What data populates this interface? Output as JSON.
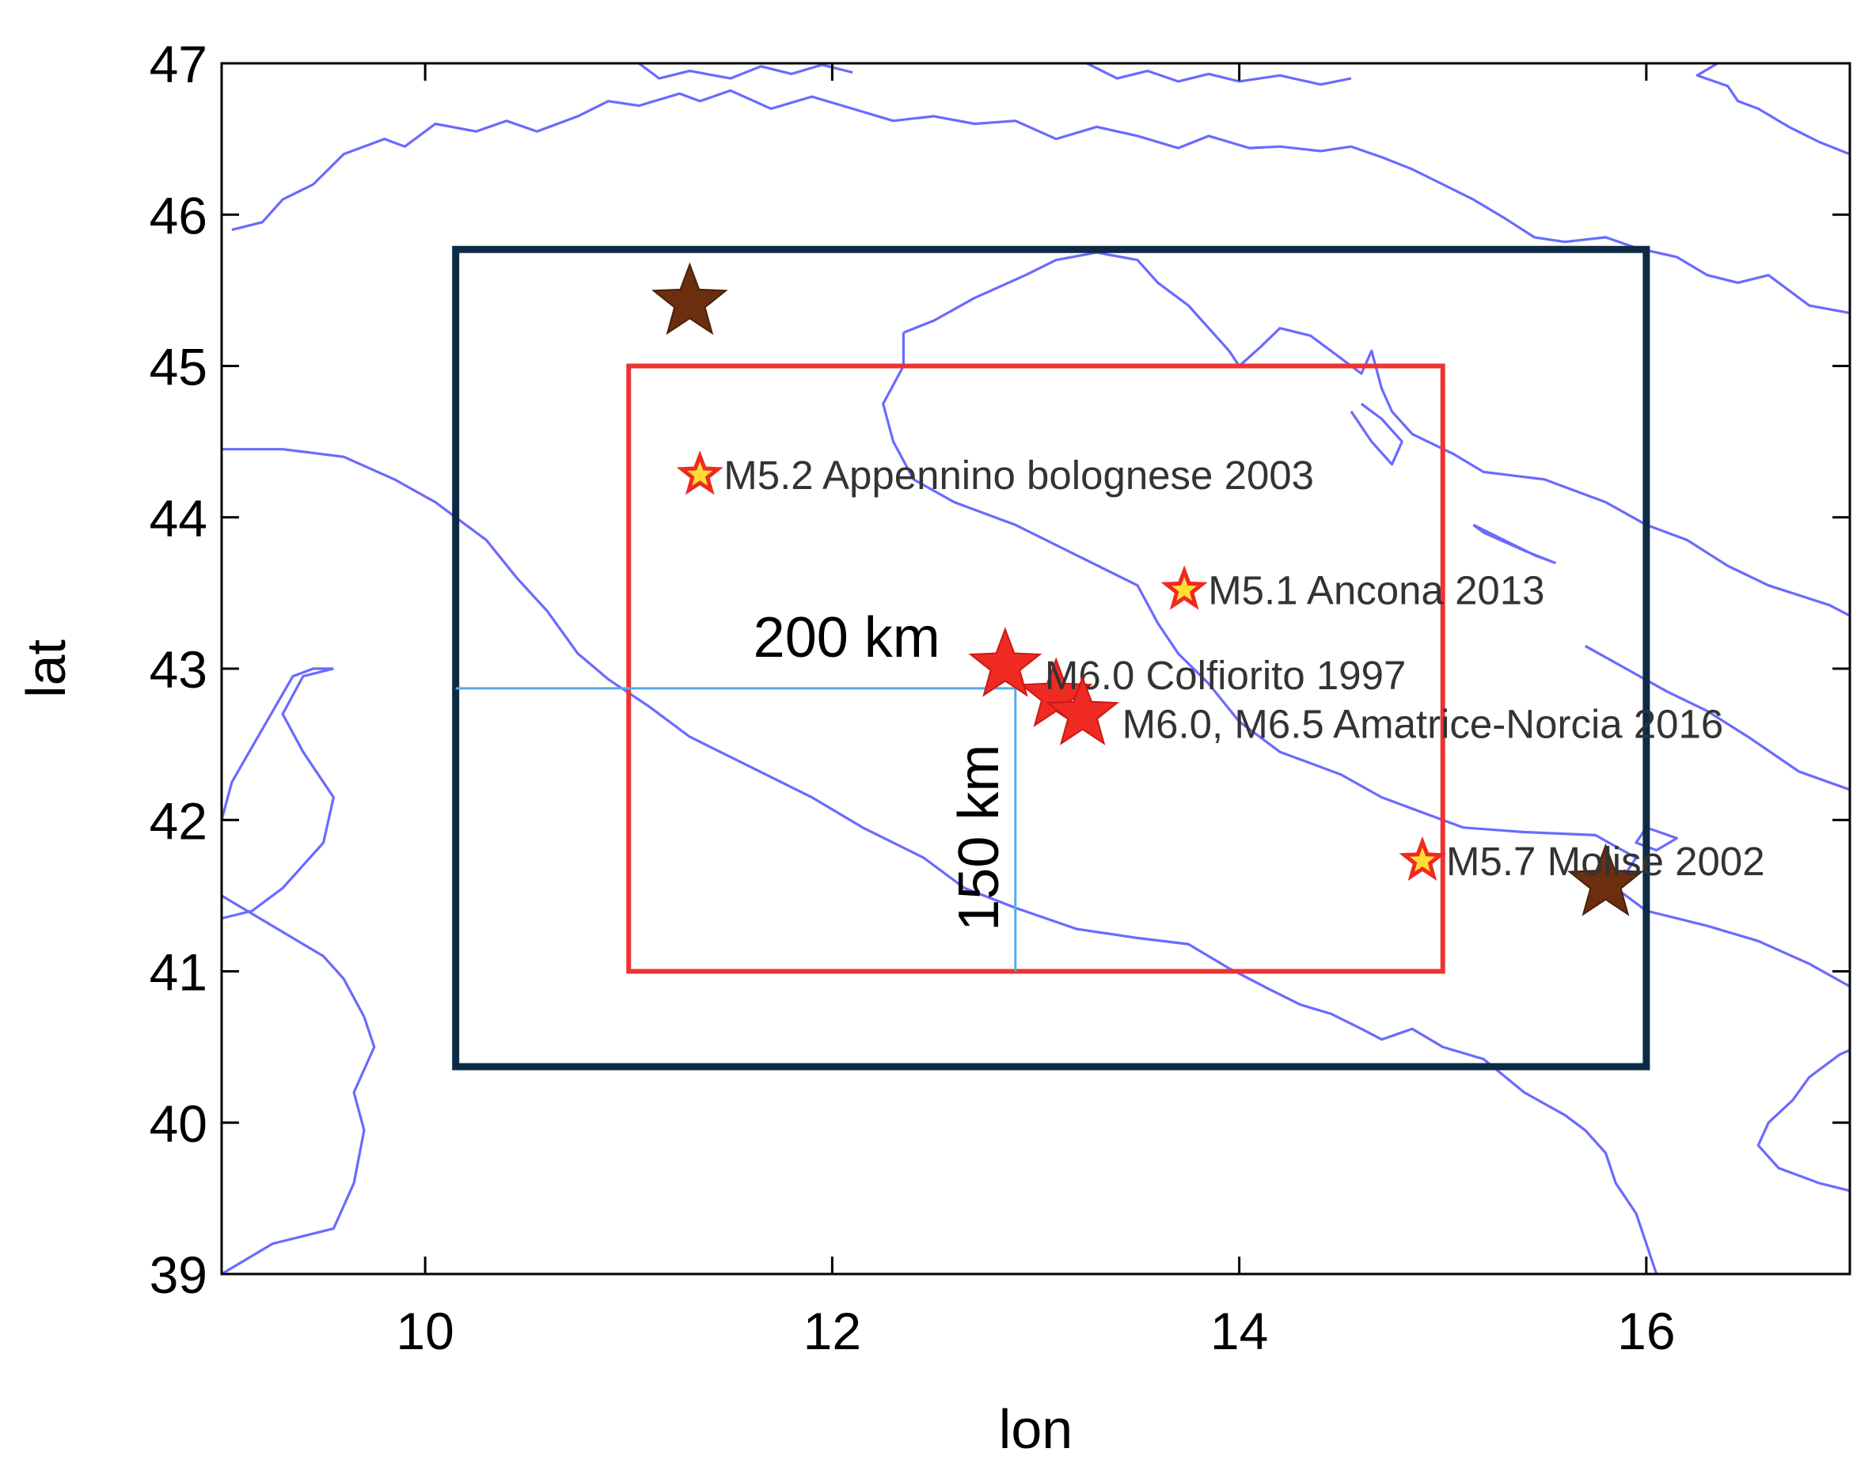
{
  "axes": {
    "x_title": "lon",
    "y_title": "lat",
    "xlim": [
      9,
      17
    ],
    "ylim": [
      39,
      47
    ],
    "x_ticks": [
      10,
      12,
      14,
      16
    ],
    "y_ticks": [
      39,
      40,
      41,
      42,
      43,
      44,
      45,
      46,
      47
    ]
  },
  "colors": {
    "coastline": "#6a6aff",
    "inner_box": "#ee3333",
    "outer_box": "#0d2a45",
    "scale_lines": "#55aaee",
    "quake_star": "#ee2a22",
    "quake_star_fill": "#ffdd33",
    "historic_star": "#6b2f10"
  },
  "boxes": {
    "inner": {
      "lon_min": 11.0,
      "lon_max": 15.0,
      "lat_min": 41.0,
      "lat_max": 45.0
    },
    "outer": {
      "lon_min": 10.15,
      "lon_max": 16.0,
      "lat_min": 40.37,
      "lat_max": 45.77
    }
  },
  "scale": {
    "horizontal_label": "200 km",
    "vertical_label": "150 km",
    "center": {
      "lon": 12.9,
      "lat": 42.87
    }
  },
  "earthquakes": [
    {
      "label": "M5.2 Appennino bolognese 2003",
      "lon": 11.35,
      "lat": 44.28,
      "kind": "small"
    },
    {
      "label": "M5.1 Ancona 2013",
      "lon": 13.73,
      "lat": 43.52,
      "kind": "small"
    },
    {
      "label": "M6.0 Colfiorito 1997",
      "lon": 12.85,
      "lat": 43.02,
      "kind": "large"
    },
    {
      "label": "M6.0, M6.5 Amatrice-Norcia 2016",
      "lon": 13.23,
      "lat": 42.7,
      "kind": "large"
    },
    {
      "label": "M5.7 Molise 2002",
      "lon": 14.9,
      "lat": 41.73,
      "kind": "small"
    }
  ],
  "extra_quake_stars": [
    {
      "lon": 13.1,
      "lat": 42.82
    }
  ],
  "historic_stars": [
    {
      "lon": 11.3,
      "lat": 45.42
    },
    {
      "lon": 15.8,
      "lat": 41.58
    }
  ],
  "coastlines": [
    [
      [
        11.05,
        47.0
      ],
      [
        11.15,
        46.9
      ],
      [
        11.3,
        46.95
      ],
      [
        11.5,
        46.9
      ],
      [
        11.65,
        46.98
      ],
      [
        11.8,
        46.93
      ],
      [
        11.95,
        46.99
      ],
      [
        12.1,
        46.94
      ]
    ],
    [
      [
        13.25,
        47.0
      ],
      [
        13.4,
        46.9
      ],
      [
        13.55,
        46.95
      ],
      [
        13.7,
        46.88
      ],
      [
        13.85,
        46.93
      ],
      [
        14.0,
        46.88
      ],
      [
        14.2,
        46.92
      ],
      [
        14.4,
        46.86
      ],
      [
        14.55,
        46.9
      ]
    ],
    [
      [
        16.35,
        47.0
      ],
      [
        16.25,
        46.92
      ],
      [
        16.4,
        46.85
      ],
      [
        16.45,
        46.75
      ],
      [
        16.55,
        46.7
      ],
      [
        16.7,
        46.58
      ],
      [
        16.85,
        46.48
      ],
      [
        17.0,
        46.4
      ]
    ],
    [
      [
        9.05,
        45.9
      ],
      [
        9.2,
        45.95
      ],
      [
        9.3,
        46.1
      ],
      [
        9.45,
        46.2
      ],
      [
        9.6,
        46.4
      ],
      [
        9.8,
        46.5
      ],
      [
        9.9,
        46.45
      ],
      [
        10.05,
        46.6
      ],
      [
        10.25,
        46.55
      ],
      [
        10.4,
        46.62
      ],
      [
        10.55,
        46.55
      ],
      [
        10.75,
        46.65
      ],
      [
        10.9,
        46.75
      ],
      [
        11.05,
        46.72
      ],
      [
        11.25,
        46.8
      ],
      [
        11.35,
        46.75
      ],
      [
        11.5,
        46.82
      ],
      [
        11.7,
        46.7
      ],
      [
        11.9,
        46.78
      ],
      [
        12.1,
        46.7
      ],
      [
        12.3,
        46.62
      ],
      [
        12.5,
        46.65
      ],
      [
        12.7,
        46.6
      ],
      [
        12.9,
        46.62
      ],
      [
        13.1,
        46.5
      ],
      [
        13.3,
        46.58
      ],
      [
        13.5,
        46.52
      ],
      [
        13.7,
        46.44
      ],
      [
        13.85,
        46.52
      ],
      [
        14.05,
        46.44
      ],
      [
        14.2,
        46.45
      ],
      [
        14.4,
        46.42
      ],
      [
        14.55,
        46.45
      ],
      [
        14.7,
        46.38
      ],
      [
        14.85,
        46.3
      ],
      [
        15.0,
        46.2
      ],
      [
        15.15,
        46.1
      ],
      [
        15.3,
        45.98
      ],
      [
        15.45,
        45.85
      ],
      [
        15.6,
        45.82
      ],
      [
        15.8,
        45.85
      ],
      [
        15.95,
        45.78
      ],
      [
        16.15,
        45.72
      ],
      [
        16.3,
        45.6
      ],
      [
        16.45,
        45.55
      ],
      [
        16.6,
        45.6
      ],
      [
        16.8,
        45.4
      ],
      [
        17.0,
        45.35
      ]
    ],
    [
      [
        12.35,
        45.22
      ],
      [
        12.5,
        45.3
      ],
      [
        12.7,
        45.45
      ],
      [
        12.95,
        45.6
      ],
      [
        13.1,
        45.7
      ],
      [
        13.3,
        45.75
      ],
      [
        13.5,
        45.7
      ],
      [
        13.6,
        45.55
      ],
      [
        13.75,
        45.4
      ],
      [
        13.85,
        45.25
      ],
      [
        13.95,
        45.1
      ],
      [
        14.0,
        45.0
      ],
      [
        14.1,
        45.12
      ],
      [
        14.2,
        45.25
      ],
      [
        14.35,
        45.2
      ],
      [
        14.5,
        45.05
      ],
      [
        14.6,
        44.95
      ],
      [
        14.65,
        45.1
      ],
      [
        14.7,
        44.85
      ],
      [
        14.75,
        44.7
      ],
      [
        14.85,
        44.55
      ],
      [
        15.05,
        44.42
      ],
      [
        15.2,
        44.3
      ],
      [
        15.5,
        44.25
      ],
      [
        15.8,
        44.1
      ],
      [
        16.0,
        43.95
      ],
      [
        16.2,
        43.85
      ],
      [
        16.4,
        43.68
      ],
      [
        16.6,
        43.55
      ],
      [
        16.9,
        43.42
      ],
      [
        17.0,
        43.35
      ]
    ],
    [
      [
        10.15,
        44.0
      ],
      [
        10.3,
        43.85
      ],
      [
        10.45,
        43.6
      ],
      [
        10.6,
        43.38
      ],
      [
        10.75,
        43.1
      ],
      [
        10.9,
        42.93
      ],
      [
        11.1,
        42.75
      ],
      [
        11.3,
        42.55
      ],
      [
        11.6,
        42.35
      ],
      [
        11.9,
        42.15
      ],
      [
        12.15,
        41.95
      ],
      [
        12.45,
        41.75
      ],
      [
        12.65,
        41.55
      ],
      [
        12.9,
        41.42
      ],
      [
        13.2,
        41.28
      ],
      [
        13.5,
        41.22
      ],
      [
        13.75,
        41.18
      ],
      [
        13.95,
        41.02
      ],
      [
        14.15,
        40.88
      ],
      [
        14.3,
        40.78
      ],
      [
        14.45,
        40.72
      ],
      [
        14.6,
        40.62
      ],
      [
        14.7,
        40.55
      ],
      [
        14.85,
        40.62
      ],
      [
        15.0,
        40.5
      ],
      [
        15.2,
        40.42
      ],
      [
        15.4,
        40.2
      ],
      [
        15.6,
        40.05
      ],
      [
        15.7,
        39.95
      ],
      [
        15.8,
        39.8
      ],
      [
        15.85,
        39.6
      ],
      [
        15.95,
        39.4
      ],
      [
        16.0,
        39.2
      ],
      [
        16.05,
        39.0
      ]
    ],
    [
      [
        9.0,
        44.45
      ],
      [
        9.3,
        44.45
      ],
      [
        9.6,
        44.4
      ],
      [
        9.85,
        44.25
      ],
      [
        10.05,
        44.1
      ],
      [
        10.15,
        44.0
      ]
    ],
    [
      [
        17.0,
        39.55
      ],
      [
        16.85,
        39.6
      ],
      [
        16.65,
        39.7
      ],
      [
        16.55,
        39.85
      ],
      [
        16.6,
        40.0
      ],
      [
        16.72,
        40.15
      ],
      [
        16.8,
        40.3
      ],
      [
        16.95,
        40.45
      ],
      [
        17.0,
        40.48
      ]
    ],
    [
      [
        17.0,
        40.9
      ],
      [
        16.8,
        41.05
      ],
      [
        16.55,
        41.2
      ],
      [
        16.3,
        41.3
      ],
      [
        16.0,
        41.4
      ],
      [
        15.85,
        41.55
      ],
      [
        15.95,
        41.75
      ],
      [
        15.75,
        41.9
      ],
      [
        15.4,
        41.92
      ],
      [
        15.1,
        41.95
      ],
      [
        14.9,
        42.05
      ],
      [
        14.7,
        42.15
      ],
      [
        14.5,
        42.3
      ],
      [
        14.2,
        42.45
      ],
      [
        14.0,
        42.65
      ],
      [
        13.85,
        42.9
      ],
      [
        13.7,
        43.1
      ],
      [
        13.6,
        43.3
      ],
      [
        13.5,
        43.55
      ],
      [
        13.2,
        43.75
      ],
      [
        12.9,
        43.95
      ],
      [
        12.6,
        44.1
      ],
      [
        12.4,
        44.25
      ],
      [
        12.3,
        44.5
      ],
      [
        12.25,
        44.75
      ],
      [
        12.35,
        45.0
      ],
      [
        12.35,
        45.22
      ]
    ],
    [
      [
        17.0,
        42.2
      ],
      [
        16.75,
        42.32
      ],
      [
        16.5,
        42.55
      ],
      [
        16.3,
        42.72
      ],
      [
        16.1,
        42.85
      ],
      [
        15.9,
        43.0
      ],
      [
        15.7,
        43.15
      ]
    ],
    [
      [
        15.15,
        43.95
      ],
      [
        15.3,
        43.85
      ],
      [
        15.45,
        43.75
      ],
      [
        15.55,
        43.7
      ],
      [
        15.4,
        43.78
      ],
      [
        15.2,
        43.9
      ],
      [
        15.15,
        43.95
      ]
    ],
    [
      [
        14.55,
        44.7
      ],
      [
        14.65,
        44.5
      ],
      [
        14.75,
        44.35
      ],
      [
        14.8,
        44.5
      ],
      [
        14.7,
        44.65
      ],
      [
        14.6,
        44.75
      ]
    ],
    [
      [
        9.55,
        43.0
      ],
      [
        9.4,
        42.95
      ],
      [
        9.3,
        42.7
      ],
      [
        9.4,
        42.45
      ],
      [
        9.55,
        42.15
      ],
      [
        9.5,
        41.85
      ],
      [
        9.3,
        41.55
      ],
      [
        9.15,
        41.4
      ],
      [
        9.0,
        41.35
      ]
    ],
    [
      [
        9.0,
        42.0
      ],
      [
        9.05,
        42.25
      ],
      [
        9.2,
        42.6
      ],
      [
        9.35,
        42.95
      ],
      [
        9.45,
        43.0
      ],
      [
        9.55,
        43.0
      ]
    ],
    [
      [
        9.0,
        41.5
      ],
      [
        9.25,
        41.3
      ],
      [
        9.5,
        41.1
      ],
      [
        9.6,
        40.95
      ],
      [
        9.7,
        40.7
      ],
      [
        9.75,
        40.5
      ],
      [
        9.65,
        40.2
      ],
      [
        9.7,
        39.95
      ],
      [
        9.65,
        39.6
      ],
      [
        9.55,
        39.3
      ],
      [
        9.25,
        39.2
      ],
      [
        9.0,
        39.0
      ]
    ],
    [
      [
        16.0,
        41.95
      ],
      [
        16.15,
        41.88
      ],
      [
        16.05,
        41.8
      ],
      [
        15.95,
        41.85
      ],
      [
        16.0,
        41.95
      ]
    ]
  ]
}
